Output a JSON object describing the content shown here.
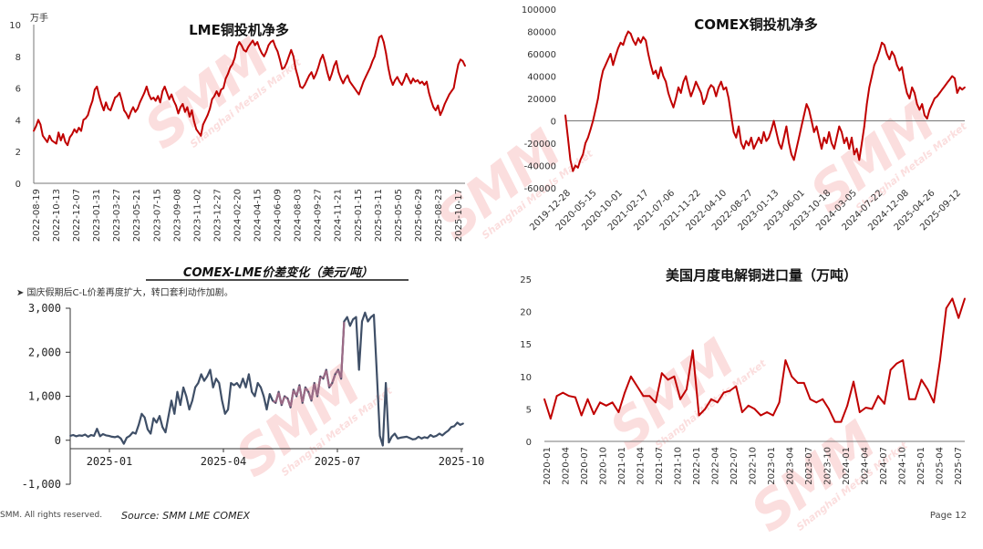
{
  "footer": {
    "copyright": "SMM. All rights reserved.",
    "source": "Source: SMM  LME  COMEX",
    "page": "Page 12"
  },
  "watermark": {
    "brand": "SMM",
    "sub": "Shanghai Metals Market",
    "color": "#e84646"
  },
  "bullet_note": "➤  国庆假期后C-L价差再度扩大，转口套利动作加剧。",
  "chart_data": [
    {
      "id": "lme",
      "type": "line",
      "title": "LME铜投机净多",
      "unit_label": "万手",
      "color": "#c00000",
      "ylim": [
        0,
        10
      ],
      "yticks": [
        0,
        2,
        4,
        6,
        8,
        10
      ],
      "x_labels": [
        "2022-08-19",
        "2022-10-13",
        "2022-12-07",
        "2023-01-31",
        "2023-03-27",
        "2023-05-21",
        "2023-07-15",
        "2023-09-08",
        "2023-11-02",
        "2023-12-27",
        "2024-02-20",
        "2024-04-15",
        "2024-06-09",
        "2024-08-03",
        "2024-09-27",
        "2024-11-21",
        "2025-01-15",
        "2025-03-11",
        "2025-05-05",
        "2025-06-29",
        "2025-08-23",
        "2025-10-17"
      ],
      "values": [
        3.3,
        3.6,
        4.0,
        3.7,
        3.0,
        2.8,
        2.6,
        3.0,
        2.7,
        2.6,
        2.5,
        3.2,
        2.7,
        3.1,
        2.6,
        2.4,
        2.9,
        3.1,
        3.4,
        3.2,
        3.5,
        3.3,
        4.0,
        4.1,
        4.3,
        4.8,
        5.2,
        5.9,
        6.1,
        5.5,
        5.0,
        4.6,
        5.1,
        4.7,
        4.6,
        5.0,
        5.4,
        5.5,
        5.7,
        5.2,
        4.6,
        4.4,
        4.1,
        4.5,
        4.8,
        4.5,
        4.7,
        5.1,
        5.4,
        5.7,
        6.1,
        5.6,
        5.3,
        5.4,
        5.2,
        5.5,
        5.1,
        5.8,
        6.1,
        5.7,
        5.3,
        5.6,
        5.2,
        4.9,
        4.4,
        4.8,
        5.0,
        4.5,
        4.8,
        4.2,
        4.6,
        3.9,
        3.4,
        3.2,
        3.0,
        3.7,
        4.0,
        4.3,
        4.7,
        5.3,
        5.5,
        5.8,
        5.5,
        5.9,
        6.0,
        6.6,
        6.9,
        7.3,
        7.5,
        7.9,
        8.6,
        8.9,
        8.7,
        8.4,
        8.3,
        8.6,
        8.8,
        9.0,
        8.7,
        8.9,
        8.5,
        8.2,
        8.0,
        8.3,
        8.7,
        8.9,
        9.0,
        8.6,
        8.3,
        7.8,
        7.2,
        7.3,
        7.6,
        8.0,
        8.4,
        8.0,
        7.2,
        6.7,
        6.1,
        6.0,
        6.2,
        6.5,
        6.8,
        7.0,
        6.6,
        6.9,
        7.3,
        7.8,
        8.1,
        7.6,
        7.0,
        6.5,
        6.9,
        7.4,
        7.7,
        7.0,
        6.6,
        6.3,
        6.6,
        6.8,
        6.4,
        6.2,
        6.0,
        5.8,
        5.6,
        6.0,
        6.4,
        6.7,
        7.0,
        7.3,
        7.7,
        8.0,
        8.6,
        9.2,
        9.3,
        8.9,
        8.2,
        7.3,
        6.6,
        6.2,
        6.5,
        6.7,
        6.4,
        6.2,
        6.5,
        6.9,
        6.6,
        6.3,
        6.6,
        6.4,
        6.5,
        6.3,
        6.4,
        6.2,
        6.4,
        5.7,
        5.2,
        4.8,
        4.6,
        4.9,
        4.3,
        4.6,
        5.0,
        5.3,
        5.6,
        5.8,
        6.0,
        6.8,
        7.5,
        7.8,
        7.7,
        7.4
      ]
    },
    {
      "id": "comex",
      "type": "line",
      "title": "COMEX铜投机净多",
      "color": "#c00000",
      "ylim": [
        -60000,
        100000
      ],
      "yticks": [
        -60000,
        -40000,
        -20000,
        0,
        20000,
        40000,
        60000,
        80000,
        100000
      ],
      "x_labels": [
        "2019-12-28",
        "2020-05-15",
        "2020-10-01",
        "2021-02-17",
        "2021-07-06",
        "2021-11-22",
        "2022-04-10",
        "2022-08-27",
        "2023-01-13",
        "2023-06-01",
        "2023-10-18",
        "2024-03-05",
        "2024-07-22",
        "2024-12-08",
        "2025-04-26",
        "2025-09-12"
      ],
      "values": [
        5000,
        -15000,
        -35000,
        -45000,
        -40000,
        -42000,
        -35000,
        -30000,
        -20000,
        -15000,
        -8000,
        0,
        10000,
        20000,
        35000,
        45000,
        50000,
        55000,
        60000,
        50000,
        58000,
        65000,
        70000,
        68000,
        75000,
        80000,
        78000,
        72000,
        68000,
        74000,
        70000,
        75000,
        72000,
        60000,
        50000,
        42000,
        45000,
        38000,
        48000,
        40000,
        35000,
        25000,
        18000,
        12000,
        20000,
        30000,
        25000,
        35000,
        40000,
        30000,
        22000,
        28000,
        35000,
        30000,
        25000,
        15000,
        20000,
        28000,
        32000,
        30000,
        22000,
        30000,
        35000,
        28000,
        30000,
        20000,
        5000,
        -10000,
        -15000,
        -5000,
        -20000,
        -25000,
        -18000,
        -22000,
        -15000,
        -25000,
        -20000,
        -15000,
        -20000,
        -10000,
        -18000,
        -15000,
        -8000,
        0,
        -10000,
        -20000,
        -25000,
        -15000,
        -5000,
        -20000,
        -30000,
        -35000,
        -25000,
        -15000,
        -5000,
        5000,
        15000,
        10000,
        0,
        -10000,
        -5000,
        -15000,
        -25000,
        -15000,
        -20000,
        -10000,
        -20000,
        -25000,
        -15000,
        -5000,
        -10000,
        -20000,
        -15000,
        -25000,
        -15000,
        -30000,
        -25000,
        -35000,
        -20000,
        -5000,
        15000,
        30000,
        40000,
        50000,
        55000,
        62000,
        70000,
        68000,
        60000,
        55000,
        62000,
        58000,
        50000,
        45000,
        48000,
        35000,
        25000,
        20000,
        30000,
        25000,
        15000,
        10000,
        15000,
        5000,
        2000,
        10000,
        15000,
        20000,
        22000,
        25000,
        28000,
        31000,
        34000,
        37000,
        40000,
        38000,
        25000,
        30000,
        28000,
        30000
      ]
    },
    {
      "id": "spread",
      "type": "line",
      "title": "COMEX-LME价差变化（美元/吨）",
      "color": "#3f4f67",
      "highlight_color": "#9c6a86",
      "ylim": [
        -1000,
        3000
      ],
      "yticks": [
        -1000,
        0,
        1000,
        2000,
        3000
      ],
      "y_tick_labels": [
        "-1,000",
        "0",
        "1,000",
        "2,000",
        "3,000"
      ],
      "x_tick_labels": [
        "2025-01",
        "2025-04",
        "2025-07",
        "2025-10"
      ],
      "values": [
        100,
        120,
        90,
        110,
        100,
        130,
        80,
        120,
        100,
        260,
        90,
        140,
        110,
        100,
        80,
        70,
        90,
        40,
        -80,
        60,
        100,
        180,
        150,
        350,
        600,
        520,
        250,
        150,
        500,
        400,
        550,
        300,
        180,
        550,
        900,
        600,
        1100,
        800,
        1200,
        1000,
        700,
        900,
        1200,
        1300,
        1500,
        1350,
        1450,
        1600,
        1200,
        1400,
        1300,
        900,
        600,
        700,
        1300,
        1250,
        1300,
        1200,
        1400,
        1200,
        1500,
        1100,
        1000,
        1300,
        1200,
        1000,
        700,
        1050,
        900,
        850,
        1100,
        800,
        1000,
        950,
        750,
        1150,
        1000,
        1250,
        850,
        1200,
        1100,
        900,
        1300,
        1000,
        1450,
        1400,
        1600,
        1200,
        1300,
        1500,
        1600,
        1400,
        2700,
        2800,
        2600,
        2750,
        2800,
        1600,
        2700,
        2900,
        2700,
        2800,
        2850,
        1500,
        100,
        -120,
        1300,
        -50,
        80,
        150,
        40,
        60,
        70,
        80,
        50,
        20,
        30,
        80,
        40,
        70,
        50,
        120,
        80,
        100,
        150,
        110,
        170,
        220,
        300,
        320,
        400,
        350,
        380
      ]
    },
    {
      "id": "import",
      "type": "line",
      "title": "美国月度电解铜进口量（万吨）",
      "color": "#c00000",
      "ylim": [
        0,
        25
      ],
      "yticks": [
        0,
        5,
        10,
        15,
        20,
        25
      ],
      "x_labels": [
        "2020-01",
        "2020-04",
        "2020-07",
        "2020-10",
        "2021-01",
        "2021-04",
        "2021-07",
        "2021-10",
        "2022-01",
        "2022-04",
        "2022-07",
        "2022-10",
        "2023-01",
        "2023-04",
        "2023-07",
        "2023-10",
        "2024-01",
        "2024-04",
        "2024-07",
        "2024-10",
        "2025-01",
        "2025-04",
        "2025-07"
      ],
      "values": [
        6.5,
        3.5,
        7.0,
        7.5,
        7.0,
        6.8,
        4.0,
        6.5,
        4.2,
        6.0,
        5.5,
        6.0,
        4.5,
        7.5,
        10.0,
        8.5,
        7.0,
        7.0,
        6.0,
        10.5,
        9.5,
        10.0,
        6.5,
        8.0,
        14.0,
        4.0,
        5.0,
        6.5,
        6.0,
        7.5,
        7.8,
        8.5,
        4.5,
        5.5,
        5.0,
        4.0,
        4.5,
        4.0,
        6.0,
        12.5,
        10.0,
        9.0,
        9.0,
        6.5,
        6.0,
        6.5,
        5.0,
        3.0,
        3.0,
        5.5,
        9.2,
        4.5,
        5.2,
        5.0,
        7.0,
        5.8,
        11.0,
        12.0,
        12.5,
        6.5,
        6.5,
        9.5,
        8.0,
        6.0,
        12.5,
        20.5,
        22.0,
        19.0,
        22.0
      ]
    }
  ]
}
